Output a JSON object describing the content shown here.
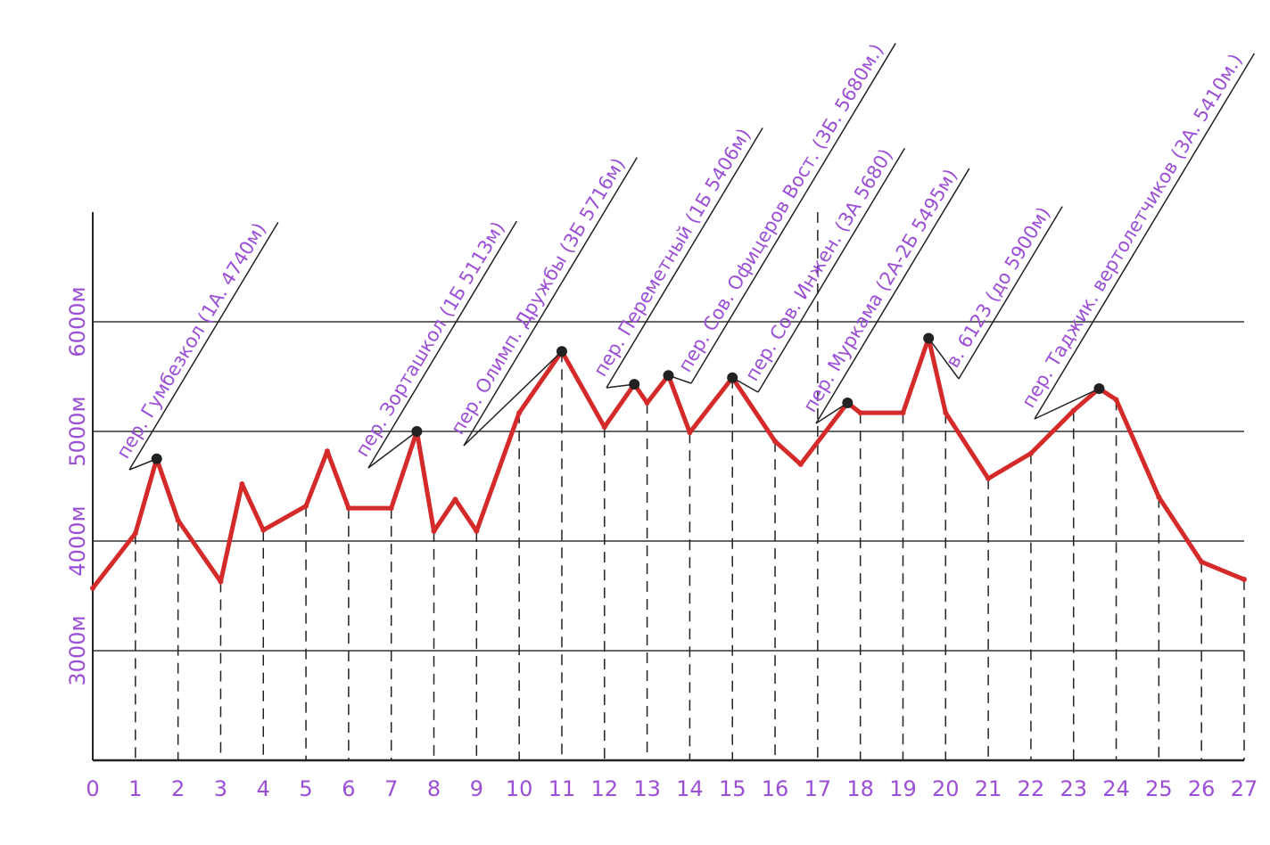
{
  "chart_data": {
    "type": "line",
    "x": [
      0,
      1,
      1.5,
      2,
      3,
      3.5,
      4,
      5,
      5.5,
      6,
      7,
      7.6,
      8,
      8.5,
      9,
      10,
      11,
      12,
      12.7,
      13,
      13.5,
      14,
      15,
      16,
      16.6,
      17.7,
      18,
      19,
      19.6,
      20,
      21,
      22,
      23,
      23.6,
      24,
      25,
      26,
      27
    ],
    "values": [
      3570,
      4070,
      4750,
      4190,
      3630,
      4520,
      4100,
      4320,
      4820,
      4300,
      4300,
      5000,
      4090,
      4380,
      4090,
      5170,
      5730,
      5040,
      5430,
      5260,
      5510,
      4990,
      5490,
      4910,
      4700,
      5260,
      5170,
      5170,
      5850,
      5170,
      4570,
      4800,
      5190,
      5390,
      5290,
      4400,
      3810,
      3650
    ],
    "color": "#d42a2a",
    "xlim": [
      0,
      27
    ],
    "xticks": [
      0,
      1,
      2,
      3,
      4,
      5,
      6,
      7,
      8,
      9,
      10,
      11,
      12,
      13,
      14,
      15,
      16,
      17,
      18,
      19,
      20,
      21,
      22,
      23,
      24,
      25,
      26,
      27
    ],
    "ylim": [
      2000,
      7000
    ],
    "yticks": [
      {
        "value": 3000,
        "label": "3000м"
      },
      {
        "value": 4000,
        "label": "4000м"
      },
      {
        "value": 5000,
        "label": "5000м"
      },
      {
        "value": 6000,
        "label": "6000м"
      }
    ],
    "grid": true,
    "annotations": [
      "пер. Гумбезкол (1А. 4740м)",
      "пер. Зорташкол (1Б 5113м)",
      "пер. Олимп. Дружбы (3Б 5716м)",
      "пер. Переметный (1Б 5406м)",
      "пер. Сов. Офицеров Вост. (3Б. 5680м.)",
      "пер. Сов. Инжен. (3А 5680)",
      "пер. Муркама (2А-2Б 5495м)",
      "в. 6123 (до 5900м)",
      "пер. Таджик. вертолетчиков (3А. 5410м.)"
    ]
  }
}
